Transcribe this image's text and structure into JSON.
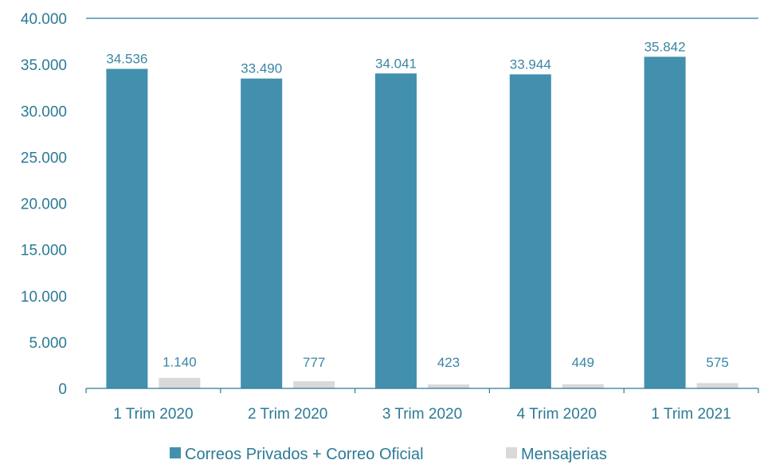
{
  "chart_data": {
    "type": "bar",
    "categories": [
      "1 Trim 2020",
      "2 Trim 2020",
      "3 Trim 2020",
      "4 Trim 2020",
      "1 Trim 2021"
    ],
    "series": [
      {
        "name": "Correos Privados + Correo Oficial",
        "values": [
          34536,
          33490,
          34041,
          33944,
          35842
        ],
        "labels": [
          "34.536",
          "33.490",
          "34.041",
          "33.944",
          "35.842"
        ],
        "color": "#4290ae"
      },
      {
        "name": "Mensajerias",
        "values": [
          1140,
          777,
          423,
          449,
          575
        ],
        "labels": [
          "1.140",
          "777",
          "423",
          "449",
          "575"
        ],
        "color": "#d9d9d9"
      }
    ],
    "yticks": [
      "0",
      "5.000",
      "10.000",
      "15.000",
      "20.000",
      "25.000",
      "30.000",
      "35.000",
      "40.000"
    ],
    "ylim": [
      0,
      40000
    ],
    "grid": false,
    "legend": "bottom"
  }
}
